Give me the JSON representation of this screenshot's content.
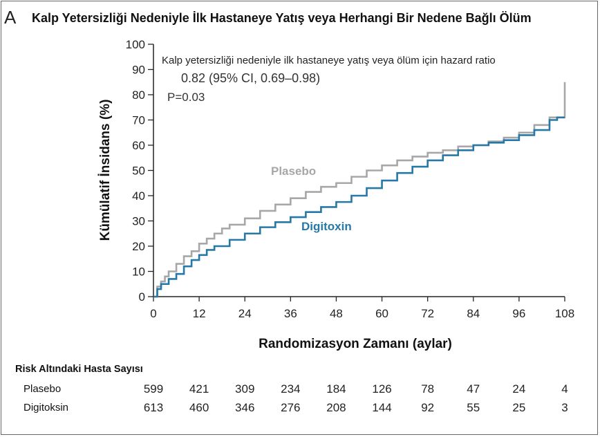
{
  "panel_letter": "A",
  "risk_table": {
    "header": "Risk Altındaki Hasta Sayısı",
    "rows": [
      {
        "label": "Plasebo",
        "values": [
          "599",
          "421",
          "309",
          "234",
          "184",
          "126",
          "78",
          "47",
          "24",
          "4"
        ]
      },
      {
        "label": "Digitoksin",
        "values": [
          "613",
          "460",
          "346",
          "276",
          "208",
          "144",
          "92",
          "55",
          "25",
          "3"
        ]
      }
    ]
  },
  "chart_data": {
    "type": "line",
    "title": "Kalp Yetersizliği Nedeniyle İlk Hastaneye Yatış veya Herhangi Bir Nedene Bağlı Ölüm",
    "xlabel": "Randomizasyon Zamanı (aylar)",
    "ylabel": "Kümülatif İnsidans (%)",
    "xlim": [
      0,
      108
    ],
    "ylim": [
      0,
      100
    ],
    "xticks": [
      0,
      12,
      24,
      36,
      48,
      60,
      72,
      84,
      96,
      108
    ],
    "yticks": [
      0,
      10,
      20,
      30,
      40,
      50,
      60,
      70,
      80,
      90,
      100
    ],
    "annotation": {
      "line1": "Kalp yetersizliği nedeniyle ilk hastaneye yatış veya ölüm için hazard ratio",
      "line2": "0.82 (95% CI, 0.69–0.98)",
      "line3": "P=0.03"
    },
    "colors": {
      "Plasebo": "#a7a7a9",
      "Digitoxin": "#2679a6"
    },
    "series": [
      {
        "name": "Plasebo",
        "x": [
          0,
          1,
          2,
          3,
          4,
          6,
          8,
          10,
          12,
          14,
          16,
          18,
          20,
          24,
          28,
          32,
          36,
          40,
          44,
          48,
          52,
          56,
          60,
          64,
          68,
          72,
          76,
          80,
          84,
          88,
          92,
          96,
          100,
          104,
          106,
          108
        ],
        "y": [
          0,
          4,
          6,
          8,
          10,
          13,
          16,
          18,
          21,
          23,
          25,
          27,
          28.5,
          31,
          34,
          36.5,
          39,
          41.5,
          43.5,
          45,
          47.5,
          50,
          52,
          54,
          55.5,
          57,
          58,
          59.5,
          60,
          61.5,
          63,
          65,
          68,
          71,
          71,
          85
        ]
      },
      {
        "name": "Digitoxin",
        "x": [
          0,
          1,
          2,
          4,
          6,
          8,
          10,
          12,
          14,
          16,
          20,
          24,
          28,
          32,
          36,
          40,
          44,
          48,
          52,
          56,
          60,
          64,
          68,
          72,
          76,
          80,
          84,
          88,
          92,
          96,
          100,
          104,
          106,
          108
        ],
        "y": [
          0,
          3,
          5,
          7,
          9,
          12,
          14.5,
          16.5,
          18.5,
          20,
          22.5,
          25,
          27.5,
          29.5,
          31.5,
          33.5,
          35.5,
          37.5,
          40,
          43,
          46,
          49,
          51.5,
          54,
          56,
          58,
          60,
          61,
          62,
          64,
          66,
          70,
          71,
          71
        ]
      }
    ],
    "series_labels": {
      "placebo": "Plasebo",
      "digitoxin": "Digitoxin"
    }
  }
}
